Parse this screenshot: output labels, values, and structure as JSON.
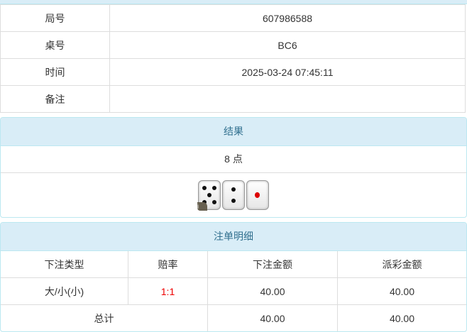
{
  "info": [
    {
      "label": "局号",
      "value": "607986588"
    },
    {
      "label": "桌号",
      "value": "BC6"
    },
    {
      "label": "时间",
      "value": "2025-03-24 07:45:11"
    },
    {
      "label": "备注",
      "value": ""
    }
  ],
  "result": {
    "title": "结果",
    "points": "8 点",
    "dice": [
      5,
      2,
      1
    ],
    "badge": "i"
  },
  "bets": {
    "title": "注单明细",
    "headers": [
      "下注类型",
      "赔率",
      "下注金额",
      "派彩金额"
    ],
    "rows": [
      {
        "type": "大/小(小)",
        "odds": "1:1",
        "amount": "40.00",
        "payout": "40.00"
      }
    ],
    "total": {
      "label": "总计",
      "amount": "40.00",
      "payout": "40.00"
    },
    "odds_color": "#ee0000"
  }
}
